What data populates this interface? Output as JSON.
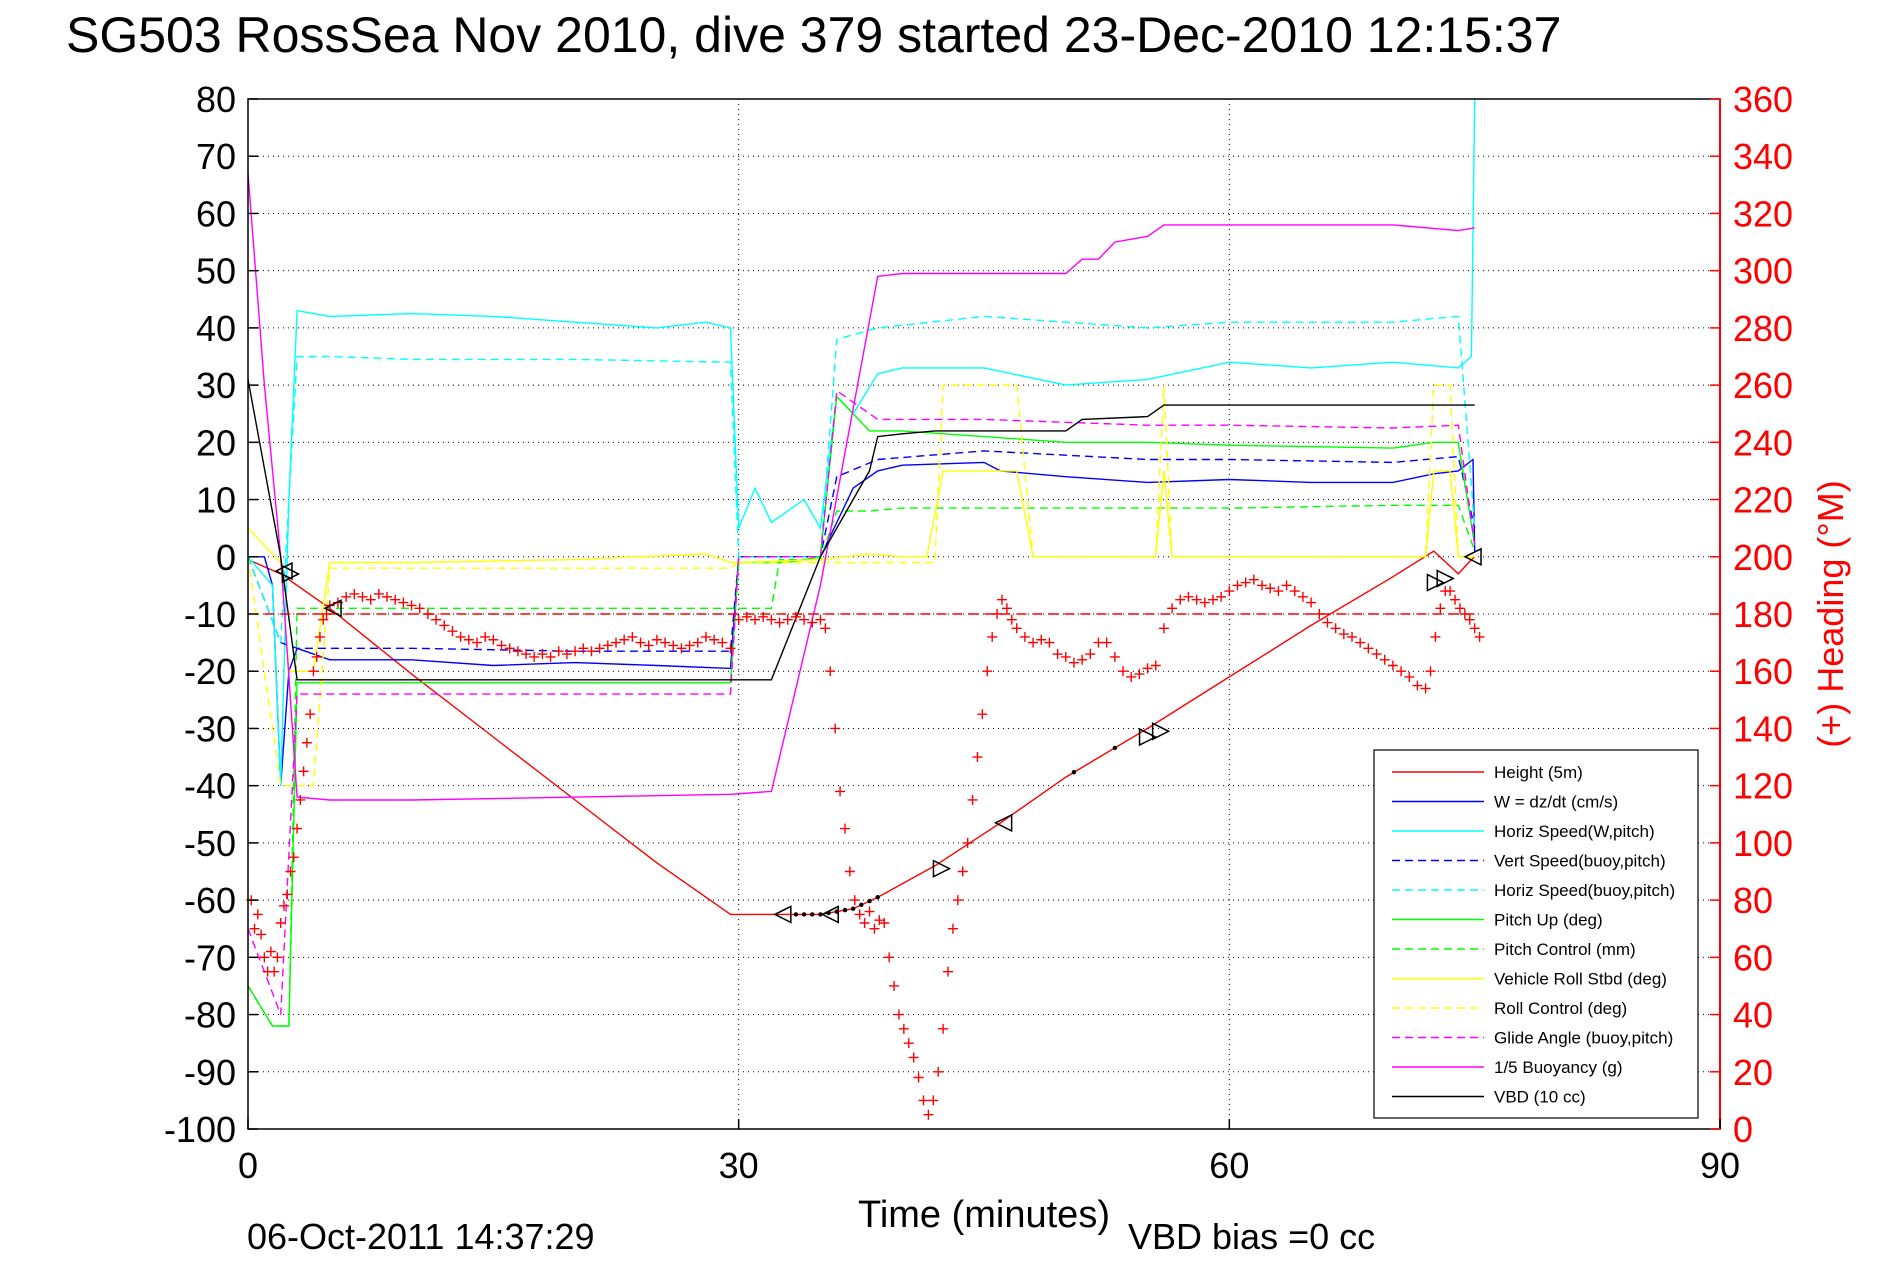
{
  "chart_data": {
    "type": "line",
    "title": "SG503 RossSea Nov 2010, dive 379 started 23-Dec-2010 12:15:37",
    "xlabel": "Time (minutes)",
    "ylabel": "",
    "ylabel_right": "(+) Heading (°M)",
    "footer_left": "06-Oct-2011 14:37:29",
    "footer_right": "VBD bias =0 cc",
    "xlim": [
      0,
      90
    ],
    "ylim": [
      -100,
      80
    ],
    "ylim_right": [
      0,
      360
    ],
    "xticks": [
      0,
      30,
      60,
      90
    ],
    "xtick_labels": [
      "0",
      "30",
      "60",
      "90"
    ],
    "yticks": [
      80,
      70,
      60,
      50,
      40,
      30,
      20,
      10,
      0,
      -10,
      -20,
      -30,
      -40,
      -50,
      -60,
      -70,
      -80,
      -90,
      -100
    ],
    "ytick_labels": [
      "80",
      "70",
      "60",
      "50",
      "40",
      "30",
      "20",
      "10",
      "0",
      "-10",
      "-20",
      "-30",
      "-40",
      "-50",
      "-60",
      "-70",
      "-80",
      "-90",
      "-100"
    ],
    "yticks_right": [
      360,
      340,
      320,
      300,
      280,
      260,
      240,
      220,
      200,
      180,
      160,
      140,
      120,
      100,
      80,
      60,
      40,
      20,
      0
    ],
    "ytick_labels_right": [
      "360",
      "340",
      "320",
      "300",
      "280",
      "260",
      "240",
      "220",
      "200",
      "180",
      "160",
      "140",
      "120",
      "100",
      "80",
      "60",
      "40",
      "20",
      "0"
    ],
    "grid": true,
    "legend_position": "bottom-right",
    "series": [
      {
        "name": "Height (5m)",
        "color": "#ff0000",
        "style": "solid",
        "x": [
          0,
          2,
          5,
          10,
          15,
          20,
          25,
          29.5,
          32,
          35,
          37,
          38.5,
          42,
          46,
          50,
          55,
          60,
          65,
          70,
          72.5,
          74,
          74.8,
          75
        ],
        "y": [
          -0.5,
          -3,
          -9,
          -20.5,
          -31.5,
          -42.5,
          -53.5,
          -62.5,
          -62.5,
          -62.5,
          -61.5,
          -59.5,
          -54,
          -46.5,
          -38.5,
          -30,
          -21,
          -12,
          -3.5,
          1,
          -3,
          -0.5,
          0
        ]
      },
      {
        "name": "W = dz/dt (cm/s)",
        "color": "#0000ff",
        "style": "solid",
        "x": [
          0,
          1,
          1.5,
          2,
          2.5,
          3,
          5,
          10,
          15,
          20,
          25,
          29.5,
          30,
          35,
          37,
          38.5,
          40,
          45,
          46,
          50,
          55,
          60,
          65,
          70,
          72.5,
          74,
          74.9,
          75
        ],
        "y": [
          0,
          0,
          -5,
          -40,
          -20,
          -16,
          -18,
          -18,
          -19,
          -18.5,
          -19,
          -19.5,
          0,
          0,
          12,
          15,
          16,
          16.5,
          15,
          14,
          13,
          13.5,
          13,
          13,
          14.5,
          15,
          17,
          1
        ]
      },
      {
        "name": "Horiz Speed(W,pitch)",
        "color": "#00ffff",
        "style": "solid",
        "x": [
          0,
          1.5,
          2,
          2.5,
          3,
          5,
          10,
          15,
          20,
          25,
          28,
          29.5,
          30,
          31,
          32,
          34,
          35,
          36,
          37,
          38.5,
          40,
          45,
          50,
          55,
          60,
          65,
          70,
          74,
          74.8,
          75
        ],
        "y": [
          0,
          -5,
          -40,
          10,
          43,
          42,
          42.5,
          42,
          41,
          40,
          41,
          40,
          5,
          12,
          6,
          10,
          5,
          28,
          25,
          32,
          33,
          33,
          30,
          31,
          34,
          33,
          34,
          33,
          35,
          80
        ]
      },
      {
        "name": "Vert Speed(buoy,pitch)",
        "color": "#0000ff",
        "style": "dashed",
        "x": [
          0,
          2,
          3,
          5,
          10,
          20,
          29.5,
          30,
          35,
          36,
          38.5,
          45,
          55,
          60,
          70,
          74,
          75
        ],
        "y": [
          0,
          -15,
          -16,
          -16,
          -16,
          -16.5,
          -16.5,
          0,
          0,
          14,
          17,
          18.5,
          17,
          17,
          16.5,
          17.5,
          5
        ]
      },
      {
        "name": "Horiz Speed(buoy,pitch)",
        "color": "#00ffff",
        "style": "dashed",
        "x": [
          0,
          2,
          3,
          5,
          10,
          20,
          29.5,
          30,
          35,
          36,
          38.5,
          45,
          55,
          60,
          70,
          74,
          75
        ],
        "y": [
          0,
          -15,
          35,
          35,
          34.5,
          34.5,
          34,
          0,
          0,
          38,
          40,
          42,
          40,
          41,
          41,
          42,
          5
        ]
      },
      {
        "name": "Pitch Up (deg)",
        "color": "#00ff00",
        "style": "solid",
        "x": [
          0,
          1.5,
          2.5,
          3,
          5,
          10,
          20,
          28,
          29.5,
          30,
          33,
          35,
          36,
          38,
          40,
          45,
          50,
          55,
          60,
          70,
          72.5,
          74,
          75
        ],
        "y": [
          -75,
          -82,
          -82,
          -22,
          -22,
          -22,
          -22,
          -22,
          -22,
          -1,
          -1,
          0,
          28,
          22,
          22,
          21,
          20,
          20,
          19.5,
          19,
          20,
          20,
          2
        ]
      },
      {
        "name": "Pitch Control (mm)",
        "color": "#00ff00",
        "style": "dashed",
        "x": [
          0,
          1.5,
          2.5,
          3,
          10,
          20,
          29.5,
          32,
          32.5,
          35,
          36,
          38,
          40,
          50,
          60,
          70,
          74,
          75
        ],
        "y": [
          -75,
          -82,
          -82,
          -9,
          -9,
          -9,
          -9,
          -9,
          -0.5,
          -0.5,
          8,
          8,
          8.5,
          8.5,
          8.5,
          9,
          9,
          1
        ]
      },
      {
        "name": "Vehicle Roll Stbd (deg)",
        "color": "#ffff00",
        "style": "solid",
        "x": [
          0,
          2,
          2.5,
          4,
          5,
          10,
          20,
          28,
          29.5,
          30,
          35,
          38,
          40,
          41.5,
          42.5,
          47,
          48,
          55.5,
          56,
          56.5,
          72,
          72.5,
          73.5,
          74,
          75
        ],
        "y": [
          5,
          -1,
          -20,
          -20,
          -1,
          -1,
          -0.5,
          0.5,
          -1,
          -1,
          -0.5,
          0.5,
          0,
          0,
          15,
          15,
          0,
          0,
          15,
          0,
          0,
          15,
          15,
          0,
          0
        ]
      },
      {
        "name": "Roll Control (deg)",
        "color": "#ffff00",
        "style": "dashed",
        "x": [
          0,
          2,
          2.5,
          4,
          5,
          29.5,
          30,
          35,
          42,
          42.5,
          47,
          48,
          55.5,
          56,
          56.5,
          72,
          72.5,
          73.5,
          74,
          75
        ],
        "y": [
          0,
          -40,
          -40,
          -40,
          -2,
          -2,
          -1,
          -1,
          -1,
          30,
          30,
          0,
          0,
          30,
          0,
          0,
          30,
          30,
          0,
          0
        ]
      },
      {
        "name": "Glide Angle (buoy,pitch)",
        "color": "#ff00ff",
        "style": "dashed",
        "x": [
          0,
          2,
          3,
          5,
          10,
          20,
          29.5,
          30,
          35,
          36,
          38.5,
          45,
          55,
          60,
          70,
          74,
          75
        ],
        "y": [
          -65,
          -80,
          -24,
          -24,
          -24,
          -24,
          -24,
          0,
          0,
          29,
          24,
          24,
          23,
          23,
          22.5,
          23,
          2
        ]
      },
      {
        "name": "1/5 Buoyancy (g)",
        "color": "#ff00ff",
        "style": "solid",
        "x": [
          0,
          1,
          2,
          3,
          5,
          10,
          20,
          29.5,
          32,
          35,
          38.5,
          40,
          45,
          50,
          51,
          52,
          53,
          54,
          55,
          56,
          60,
          70,
          74,
          75
        ],
        "y": [
          67,
          30,
          0,
          -42,
          -42.5,
          -42.5,
          -42,
          -41.5,
          -41,
          -5,
          49,
          49.5,
          49.5,
          49.5,
          52,
          52,
          55,
          55.5,
          56,
          58,
          58,
          58,
          57,
          57.5
        ]
      },
      {
        "name": "VBD (10 cc)",
        "color": "#000000",
        "style": "solid",
        "x": [
          0,
          2,
          3,
          10,
          20,
          29.5,
          32,
          35,
          38,
          38.5,
          40,
          42,
          45,
          50,
          51,
          55,
          56,
          60,
          70,
          74,
          75
        ],
        "y": [
          31,
          0,
          -21.5,
          -21.5,
          -21.5,
          -21.5,
          -21.5,
          0,
          15,
          21,
          21.5,
          22,
          22,
          22,
          24,
          24.5,
          26.5,
          26.5,
          26.5,
          26.5,
          26.5
        ]
      }
    ],
    "heading": {
      "name": "Heading (°M)",
      "color": "#ff0000",
      "axis": "right",
      "marker": "+",
      "target_line": 180,
      "x": [
        0.2,
        0.4,
        0.6,
        0.8,
        1,
        1.2,
        1.4,
        1.6,
        1.8,
        2,
        2.2,
        2.4,
        2.6,
        2.8,
        3,
        3.2,
        3.4,
        3.6,
        3.8,
        4,
        4.2,
        4.4,
        4.6,
        4.8,
        5,
        5.5,
        6,
        6.5,
        7,
        7.5,
        8,
        8.5,
        9,
        9.5,
        10,
        10.5,
        11,
        11.5,
        12,
        12.5,
        13,
        13.5,
        14,
        14.5,
        15,
        15.5,
        16,
        16.5,
        17,
        17.5,
        18,
        18.5,
        19,
        19.5,
        20,
        20.5,
        21,
        21.5,
        22,
        22.5,
        23,
        23.5,
        24,
        24.5,
        25,
        25.5,
        26,
        26.5,
        27,
        27.5,
        28,
        28.5,
        29,
        29.5,
        30,
        30.5,
        31,
        31.5,
        32,
        32.5,
        33,
        33.5,
        34,
        34.5,
        35,
        35.3,
        35.6,
        35.9,
        36.2,
        36.5,
        36.8,
        37.1,
        37.4,
        37.7,
        38,
        38.3,
        38.6,
        38.9,
        39.2,
        39.5,
        39.8,
        40.1,
        40.4,
        40.7,
        41,
        41.3,
        41.6,
        41.9,
        42.2,
        42.5,
        42.8,
        43.1,
        43.4,
        43.7,
        44,
        44.3,
        44.6,
        44.9,
        45.2,
        45.5,
        45.8,
        46.1,
        46.4,
        46.7,
        47,
        47.5,
        48,
        48.5,
        49,
        49.5,
        50,
        50.5,
        51,
        51.5,
        52,
        52.5,
        53,
        53.5,
        54,
        54.5,
        55,
        55.5,
        56,
        56.5,
        57,
        57.5,
        58,
        58.5,
        59,
        59.5,
        60,
        60.5,
        61,
        61.5,
        62,
        62.5,
        63,
        63.5,
        64,
        64.5,
        65,
        65.5,
        66,
        66.5,
        67,
        67.5,
        68,
        68.5,
        69,
        69.5,
        70,
        70.5,
        71,
        71.5,
        72,
        72.3,
        72.6,
        72.9,
        73.2,
        73.5,
        73.8,
        74.1,
        74.4,
        74.7,
        75,
        75.3
      ],
      "y": [
        80,
        70,
        75,
        68,
        60,
        55,
        62,
        55,
        60,
        72,
        78,
        82,
        90,
        95,
        105,
        115,
        125,
        135,
        145,
        160,
        165,
        172,
        178,
        180,
        183,
        184,
        186,
        187,
        186,
        185,
        187,
        186,
        185,
        184,
        183,
        182,
        180,
        178,
        176,
        174,
        172,
        171,
        170,
        172,
        171,
        169,
        168,
        167,
        166,
        165,
        166,
        165,
        167,
        166,
        167,
        168,
        167,
        168,
        169,
        170,
        171,
        172,
        170,
        169,
        171,
        170,
        169,
        168,
        169,
        170,
        172,
        171,
        170,
        168,
        178,
        179,
        178,
        179,
        178,
        177,
        178,
        179,
        178,
        177,
        178,
        175,
        160,
        140,
        118,
        105,
        90,
        80,
        75,
        72,
        76,
        70,
        73,
        72,
        60,
        50,
        40,
        35,
        30,
        25,
        18,
        10,
        5,
        10,
        20,
        35,
        55,
        70,
        80,
        90,
        100,
        115,
        130,
        145,
        160,
        172,
        180,
        185,
        182,
        178,
        175,
        172,
        170,
        171,
        170,
        166,
        165,
        163,
        164,
        166,
        170,
        170,
        165,
        160,
        158,
        159,
        161,
        162,
        175,
        182,
        185,
        186,
        185,
        184,
        185,
        186,
        188,
        190,
        191,
        192,
        190,
        189,
        188,
        190,
        188,
        186,
        184,
        180,
        177,
        175,
        173,
        172,
        170,
        168,
        166,
        164,
        162,
        160,
        158,
        155,
        154,
        160,
        172,
        182,
        188,
        188,
        185,
        182,
        180,
        178,
        175,
        172
      ]
    },
    "markers": {
      "name": "Height triangles",
      "color": "#000000",
      "x": [
        2.2,
        2.6,
        5.2,
        32.7,
        35.6,
        42.4,
        46.2,
        55,
        55.8,
        72.6,
        73.2,
        74.9
      ],
      "y": [
        -2.5,
        -3,
        -9,
        -62.5,
        -62.5,
        -54.5,
        -46.5,
        -31.5,
        -30.5,
        -4.5,
        -3.8,
        0
      ],
      "dir": [
        "left",
        "right",
        "left",
        "left",
        "left",
        "right",
        "left",
        "right",
        "right",
        "right",
        "right",
        "left"
      ]
    },
    "legend": [
      {
        "label": "Height (5m)",
        "color": "#ff0000",
        "style": "solid"
      },
      {
        "label": "W = dz/dt (cm/s)",
        "color": "#0000ff",
        "style": "solid"
      },
      {
        "label": "Horiz Speed(W,pitch)",
        "color": "#00ffff",
        "style": "solid"
      },
      {
        "label": "Vert Speed(buoy,pitch)",
        "color": "#0000ff",
        "style": "dashed"
      },
      {
        "label": "Horiz Speed(buoy,pitch)",
        "color": "#00ffff",
        "style": "dashed"
      },
      {
        "label": "Pitch Up (deg)",
        "color": "#00ff00",
        "style": "solid"
      },
      {
        "label": "Pitch Control (mm)",
        "color": "#00ff00",
        "style": "dashed"
      },
      {
        "label": "Vehicle Roll Stbd (deg)",
        "color": "#ffff00",
        "style": "solid"
      },
      {
        "label": "Roll Control (deg)",
        "color": "#ffff00",
        "style": "dashed"
      },
      {
        "label": "Glide Angle (buoy,pitch)",
        "color": "#ff00ff",
        "style": "dashed"
      },
      {
        "label": "1/5 Buoyancy (g)",
        "color": "#ff00ff",
        "style": "solid"
      },
      {
        "label": "VBD (10 cc)",
        "color": "#000000",
        "style": "solid"
      }
    ]
  }
}
